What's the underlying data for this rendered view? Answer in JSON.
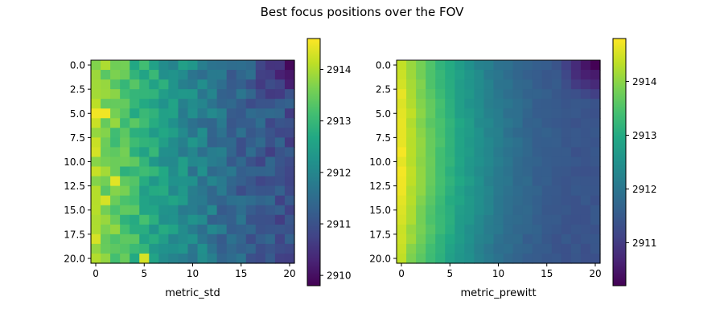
{
  "figure": {
    "title": "Best focus positions over the FOV"
  },
  "chart_data": [
    {
      "type": "heatmap",
      "title": "",
      "xlabel": "metric_std",
      "ylabel": "",
      "grid": false,
      "colormap": "viridis",
      "rows": 21,
      "cols": 21,
      "extent_x": [
        -0.5,
        20.5
      ],
      "extent_y": [
        20.5,
        -0.5
      ],
      "x_ticks": [
        0,
        5,
        10,
        15,
        20
      ],
      "x_tick_labels": [
        "0",
        "5",
        "10",
        "15",
        "20"
      ],
      "y_ticks": [
        0,
        2.5,
        5,
        7.5,
        10,
        12.5,
        15,
        17.5,
        20
      ],
      "y_tick_labels": [
        "0.0",
        "2.5",
        "5.0",
        "7.5",
        "10.0",
        "12.5",
        "15.0",
        "17.5",
        "20.0"
      ],
      "colorbar": {
        "vmin": 2909.8,
        "vmax": 2914.6,
        "ticks": [
          2910,
          2911,
          2912,
          2913,
          2914
        ],
        "tick_labels": [
          "2910",
          "2911",
          "2912",
          "2913",
          "2914"
        ]
      },
      "model": {
        "left_value": 2913.9,
        "right_value": 2911.0,
        "curvature": 1.6,
        "top_right_value": 2910.0,
        "corner_radius": 4,
        "hotspots": [
          {
            "row": 5,
            "col": 0,
            "value": 2914.5
          },
          {
            "row": 5,
            "col": 1,
            "value": 2914.5
          },
          {
            "row": 12,
            "col": 2,
            "value": 2914.4
          },
          {
            "row": 14,
            "col": 1,
            "value": 2914.3
          },
          {
            "row": 8,
            "col": 0,
            "value": 2914.2
          },
          {
            "row": 20,
            "col": 5,
            "value": 2914.3
          }
        ],
        "noise_amplitude": 0.4,
        "seed": 7
      }
    },
    {
      "type": "heatmap",
      "title": "",
      "xlabel": "metric_prewitt",
      "ylabel": "",
      "grid": false,
      "colormap": "viridis",
      "rows": 21,
      "cols": 21,
      "extent_x": [
        -0.5,
        20.5
      ],
      "extent_y": [
        20.5,
        -0.5
      ],
      "x_ticks": [
        0,
        5,
        10,
        15,
        20
      ],
      "x_tick_labels": [
        "0",
        "5",
        "10",
        "15",
        "20"
      ],
      "y_ticks": [
        0,
        2.5,
        5,
        7.5,
        10,
        12.5,
        15,
        17.5,
        20
      ],
      "y_tick_labels": [
        "0.0",
        "2.5",
        "5.0",
        "7.5",
        "10.0",
        "12.5",
        "15.0",
        "17.5",
        "20.0"
      ],
      "colorbar": {
        "vmin": 2910.2,
        "vmax": 2914.8,
        "ticks": [
          2911,
          2912,
          2913,
          2914
        ],
        "tick_labels": [
          "2911",
          "2912",
          "2913",
          "2914"
        ]
      },
      "model": {
        "left_value": 2914.7,
        "right_value": 2911.4,
        "curvature": 2.2,
        "peak_row": 9,
        "vertical_falloff": 0.35,
        "top_right_value": 2910.2,
        "corner_radius": 4,
        "hotspots": [],
        "noise_amplitude": 0.08,
        "seed": 3
      }
    }
  ]
}
